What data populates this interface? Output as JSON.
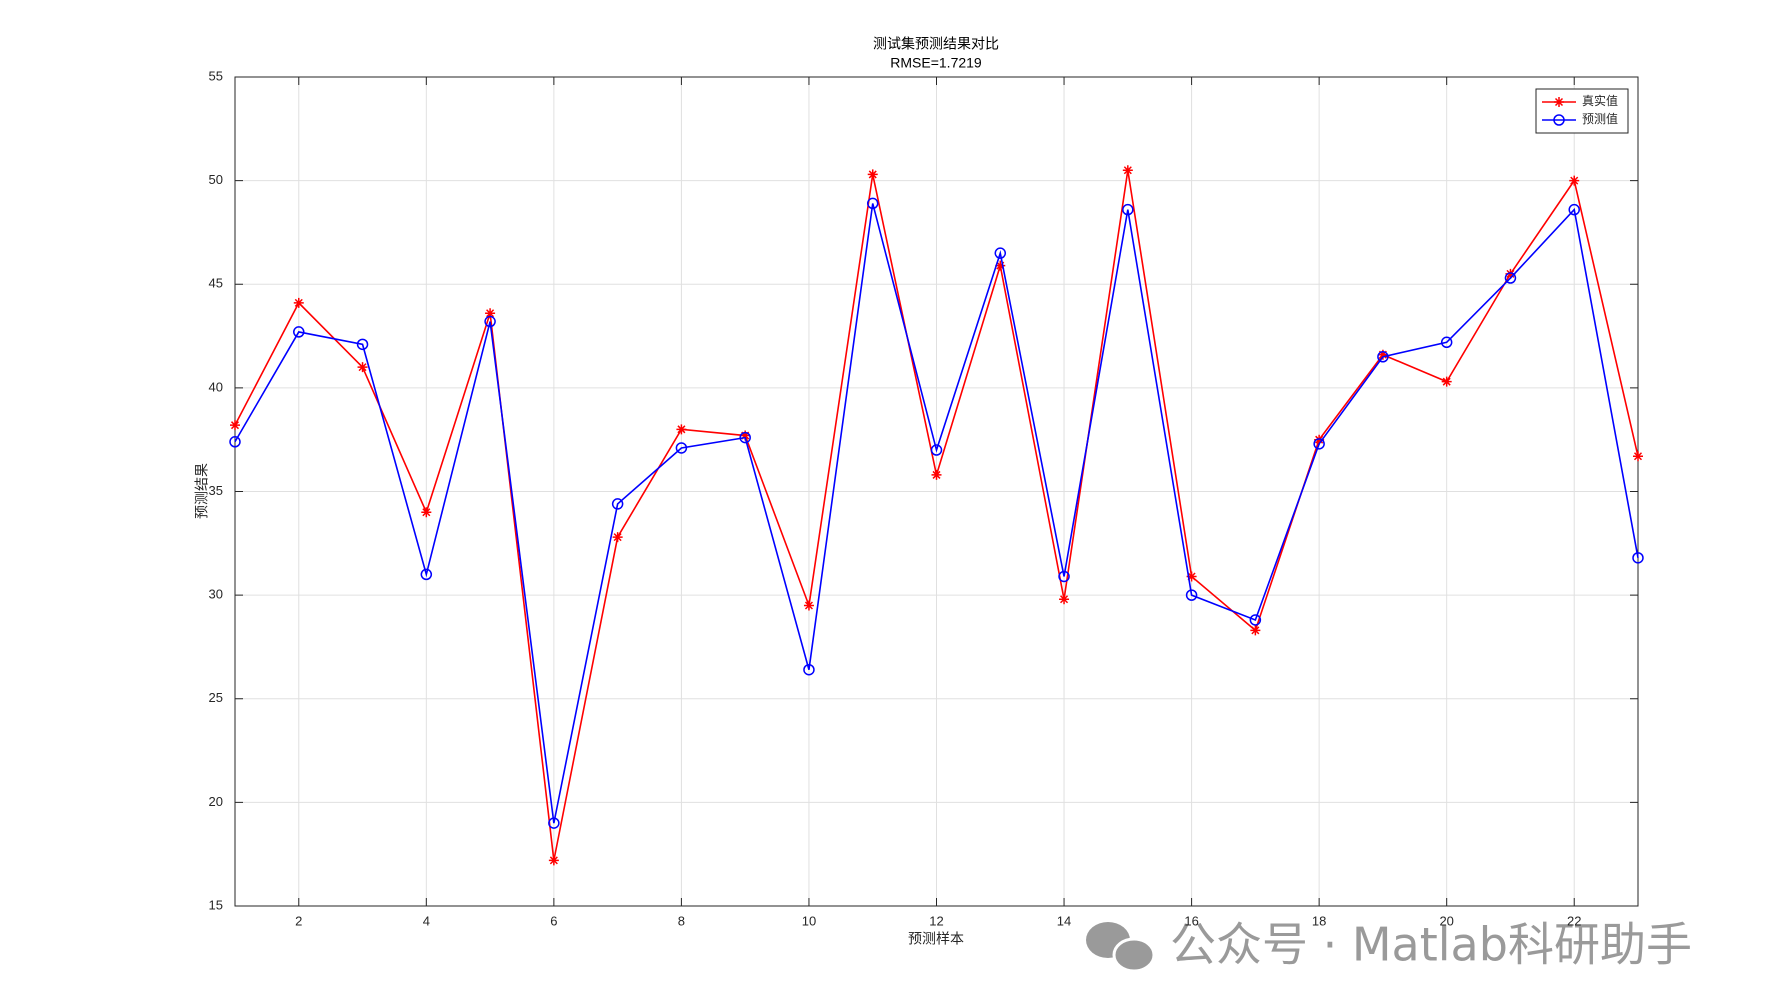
{
  "chart_data": {
    "type": "line",
    "title": "测试集预测结果对比",
    "subtitle": "RMSE=1.7219",
    "x_label": "预测样本",
    "y_label": "预测结果",
    "x": [
      1,
      2,
      3,
      4,
      5,
      6,
      7,
      8,
      9,
      10,
      11,
      12,
      13,
      14,
      15,
      16,
      17,
      18,
      19,
      20,
      21,
      22,
      23
    ],
    "series": [
      {
        "name": "真实值",
        "color": "#ff0000",
        "marker": "asterisk",
        "values": [
          38.2,
          44.1,
          41.0,
          34.0,
          43.6,
          17.2,
          32.8,
          38.0,
          37.7,
          29.5,
          50.3,
          35.8,
          45.9,
          29.8,
          50.5,
          30.9,
          28.3,
          37.5,
          41.6,
          40.3,
          45.5,
          50.0,
          36.7
        ]
      },
      {
        "name": "预测值",
        "color": "#0000ff",
        "marker": "circle",
        "values": [
          37.4,
          42.7,
          42.1,
          31.0,
          43.2,
          19.0,
          34.4,
          37.1,
          37.6,
          26.4,
          48.9,
          37.0,
          46.5,
          30.9,
          48.6,
          30.0,
          28.8,
          37.3,
          41.5,
          42.2,
          45.3,
          48.6,
          31.8
        ]
      }
    ],
    "xlim": [
      1,
      23
    ],
    "xticks": [
      2,
      4,
      6,
      8,
      10,
      12,
      14,
      16,
      18,
      20,
      22
    ],
    "ylim": [
      15,
      55
    ],
    "yticks": [
      15,
      20,
      25,
      30,
      35,
      40,
      45,
      50,
      55
    ],
    "grid": true,
    "legend": "northeast"
  },
  "watermark": "公众号 · Matlab科研助手"
}
